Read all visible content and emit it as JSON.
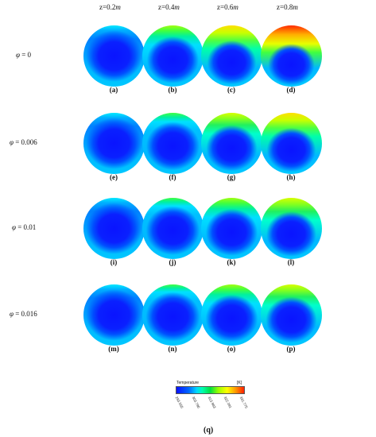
{
  "columns": [
    {
      "prefix": "z=",
      "value": "0.2",
      "unit": "m"
    },
    {
      "prefix": "z=",
      "value": "0.4",
      "unit": "m"
    },
    {
      "prefix": "z=",
      "value": "0.6",
      "unit": "m"
    },
    {
      "prefix": "z=",
      "value": "0.8",
      "unit": "m"
    }
  ],
  "rows": [
    {
      "symbol": "φ",
      "label": " = 0"
    },
    {
      "symbol": "φ",
      "label": " = 0.006"
    },
    {
      "symbol": "φ",
      "label": " = 0.01"
    },
    {
      "symbol": "φ",
      "label": " = 0.016"
    }
  ],
  "captions": [
    "(a)",
    "(b)",
    "(c)",
    "(d)",
    "(e)",
    "(f)",
    "(g)",
    "(h)",
    "(i)",
    "(j)",
    "(k)",
    "(l)",
    "(m)",
    "(n)",
    "(o)",
    "(p)"
  ],
  "panels_top_heat": [
    [
      0.0,
      0.45,
      0.75,
      1.0
    ],
    [
      0.0,
      0.3,
      0.55,
      0.75
    ],
    [
      0.0,
      0.25,
      0.45,
      0.65
    ],
    [
      0.0,
      0.2,
      0.4,
      0.55
    ]
  ],
  "legend": {
    "title": "Temperature",
    "unit": "[K]",
    "ticks": [
      "293.555",
      "303.796",
      "313.983",
      "322.391",
      "331.775"
    ]
  },
  "figure_caption": "(q)"
}
